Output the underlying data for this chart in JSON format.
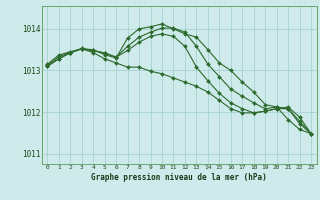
{
  "xlabel": "Graphe pression niveau de la mer (hPa)",
  "background_color": "#ceeaea",
  "grid_color": "#9ecece",
  "line_color": "#2d6a2d",
  "ylim": [
    1010.75,
    1014.55
  ],
  "xlim": [
    -0.5,
    23.5
  ],
  "yticks": [
    1011,
    1012,
    1013,
    1014
  ],
  "xticks": [
    0,
    1,
    2,
    3,
    4,
    5,
    6,
    7,
    8,
    9,
    10,
    11,
    12,
    13,
    14,
    15,
    16,
    17,
    18,
    19,
    20,
    21,
    22,
    23
  ],
  "lines": [
    [
      1013.15,
      1013.37,
      1013.45,
      1013.52,
      1013.5,
      1013.38,
      1013.3,
      1013.78,
      1014.0,
      1014.05,
      1014.12,
      1014.0,
      1013.88,
      1013.8,
      1013.5,
      1013.18,
      1013.0,
      1012.72,
      1012.48,
      1012.18,
      1012.12,
      1011.82,
      1011.58,
      1011.48
    ],
    [
      1013.12,
      1013.33,
      1013.43,
      1013.53,
      1013.48,
      1013.42,
      1013.32,
      1013.58,
      1013.8,
      1013.92,
      1014.02,
      1014.02,
      1013.92,
      1013.58,
      1013.15,
      1012.85,
      1012.55,
      1012.38,
      1012.22,
      1012.08,
      1012.12,
      1012.08,
      1011.72,
      1011.48
    ],
    [
      1013.1,
      1013.28,
      1013.42,
      1013.52,
      1013.47,
      1013.42,
      1013.32,
      1013.48,
      1013.68,
      1013.82,
      1013.88,
      1013.82,
      1013.58,
      1013.08,
      1012.75,
      1012.45,
      1012.22,
      1012.08,
      1011.98,
      1012.02,
      1012.08,
      1012.08,
      1011.78,
      1011.48
    ],
    [
      1013.1,
      1013.28,
      1013.43,
      1013.52,
      1013.43,
      1013.28,
      1013.18,
      1013.08,
      1013.08,
      1012.98,
      1012.92,
      1012.82,
      1012.72,
      1012.62,
      1012.48,
      1012.28,
      1012.08,
      1011.98,
      1011.98,
      1012.02,
      1012.08,
      1012.12,
      1011.88,
      1011.48
    ]
  ]
}
